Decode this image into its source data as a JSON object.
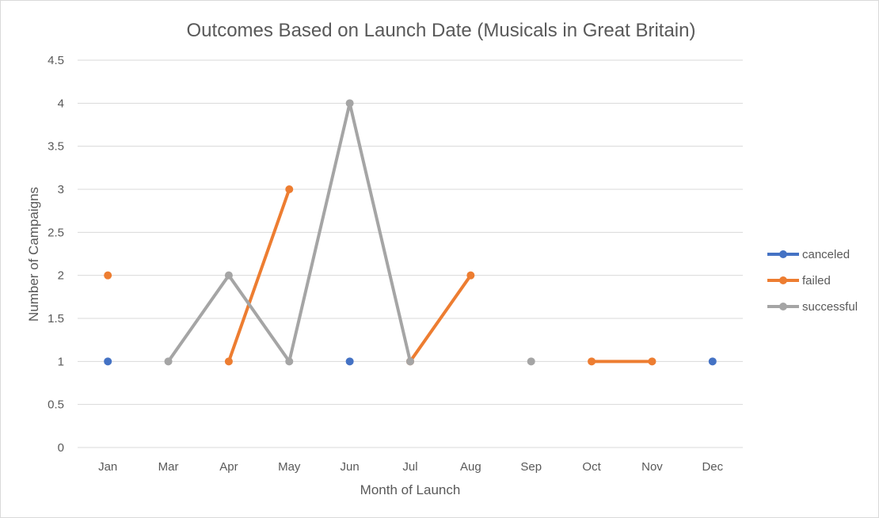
{
  "chart_data": {
    "type": "line",
    "title": "Outcomes Based on Launch Date (Musicals in Great Britain)",
    "xlabel": "Month of Launch",
    "ylabel": "Number of Campaigns",
    "categories": [
      "Jan",
      "Mar",
      "Apr",
      "May",
      "Jun",
      "Jul",
      "Aug",
      "Sep",
      "Oct",
      "Nov",
      "Dec"
    ],
    "ylim": [
      0,
      4.5
    ],
    "yticks": [
      "0",
      "0.5",
      "1",
      "1.5",
      "2",
      "2.5",
      "3",
      "3.5",
      "4",
      "4.5"
    ],
    "grid": true,
    "legend_position": "right",
    "series": [
      {
        "name": "canceled",
        "color": "#4472C4",
        "values": [
          1,
          null,
          null,
          null,
          1,
          null,
          null,
          null,
          null,
          null,
          1
        ]
      },
      {
        "name": "failed",
        "color": "#ED7D31",
        "values": [
          2,
          null,
          1,
          3,
          null,
          1,
          2,
          null,
          1,
          1,
          null
        ]
      },
      {
        "name": "successful",
        "color": "#A5A5A5",
        "values": [
          null,
          1,
          2,
          1,
          4,
          1,
          null,
          1,
          null,
          null,
          null
        ]
      }
    ]
  }
}
